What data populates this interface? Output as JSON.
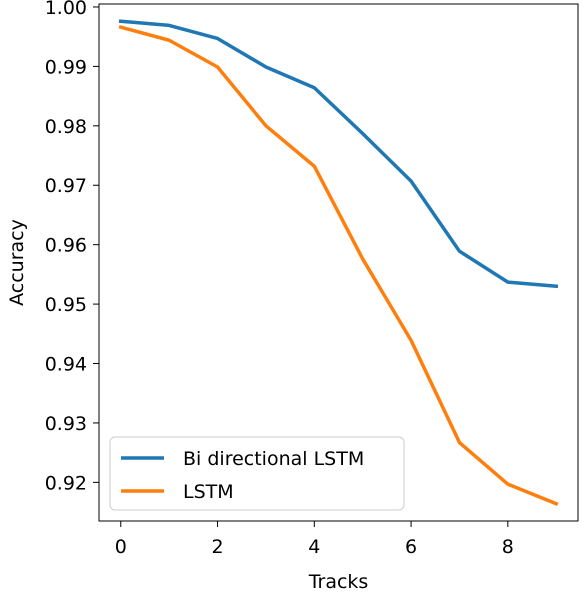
{
  "chart_data": {
    "type": "line",
    "title": "",
    "xlabel": "Tracks",
    "ylabel": "Accuracy",
    "xlim": [
      -0.45,
      9.45
    ],
    "ylim": [
      0.9135,
      1.0005
    ],
    "xticks": [
      0,
      2,
      4,
      6,
      8
    ],
    "yticks": [
      0.92,
      0.93,
      0.94,
      0.95,
      0.96,
      0.97,
      0.98,
      0.99,
      1.0
    ],
    "grid": false,
    "legend_position": "lower-left",
    "x": [
      0,
      1,
      2,
      3,
      4,
      5,
      6,
      7,
      8,
      9
    ],
    "series": [
      {
        "name": "Bi directional LSTM",
        "color": "#1f77b4",
        "values": [
          0.9976,
          0.9969,
          0.9947,
          0.9899,
          0.9864,
          0.9787,
          0.9707,
          0.9589,
          0.9537,
          0.953
        ]
      },
      {
        "name": "LSTM",
        "color": "#ff7f0e",
        "values": [
          0.9966,
          0.9944,
          0.9899,
          0.98,
          0.9732,
          0.9576,
          0.9439,
          0.9267,
          0.9197,
          0.9164
        ]
      }
    ]
  }
}
